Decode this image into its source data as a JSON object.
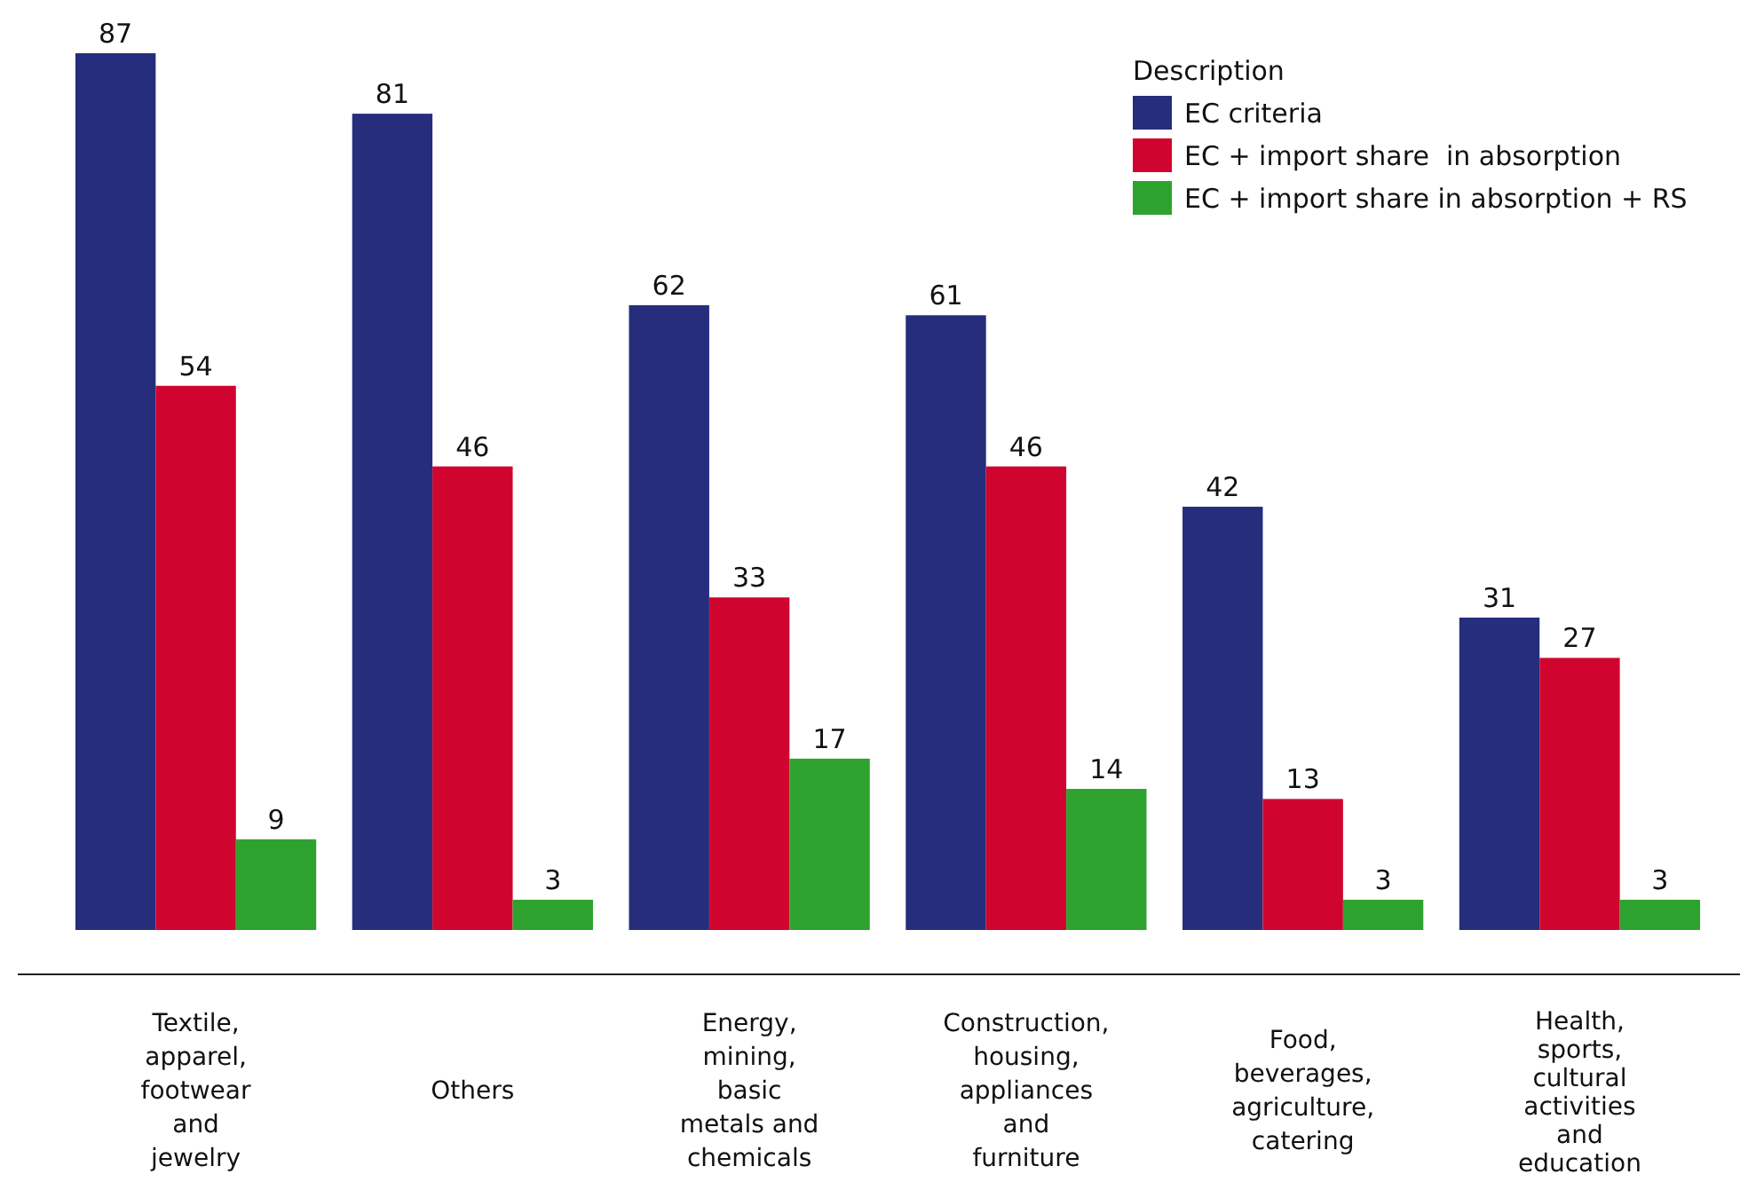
{
  "chart_data": {
    "type": "bar",
    "legend_title": "Description",
    "legend": "top right",
    "data_labels": true,
    "categories": [
      "Textile, apparel, footwear and jewelry",
      "Others",
      "Energy, mining, basic metals and chemicals",
      "Construction, housing, appliances and furniture",
      "Food, beverages, agriculture, catering",
      "Health, sports, cultural activities and education"
    ],
    "series": [
      {
        "name": "EC criteria",
        "color": "#262d7d",
        "values": [
          87,
          81,
          62,
          61,
          42,
          31
        ]
      },
      {
        "name": "EC + import share  in absorption",
        "color": "#d0052f",
        "values": [
          54,
          46,
          33,
          46,
          13,
          27
        ]
      },
      {
        "name": "EC + import share in absorption + RS",
        "color": "#2ea22e",
        "values": [
          9,
          3,
          17,
          14,
          3,
          3
        ]
      }
    ]
  }
}
